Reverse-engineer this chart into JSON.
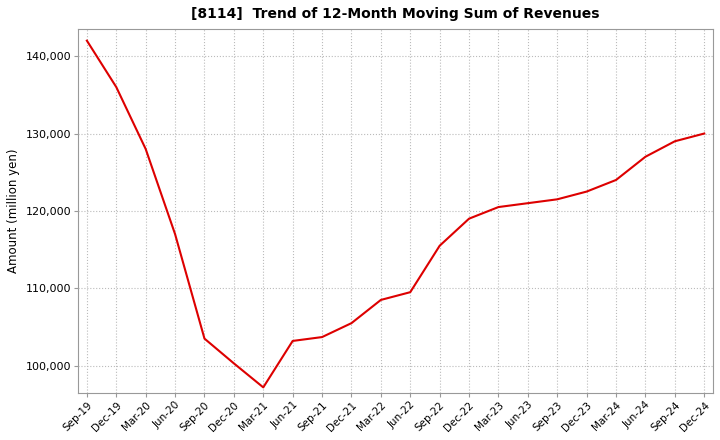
{
  "title": "[8114]  Trend of 12-Month Moving Sum of Revenues",
  "ylabel": "Amount (million yen)",
  "line_color": "#dd0000",
  "background_color": "#ffffff",
  "plot_bg_color": "#ffffff",
  "grid_color": "#bbbbbb",
  "ylim": [
    96500,
    143500
  ],
  "yticks": [
    100000,
    110000,
    120000,
    130000,
    140000
  ],
  "x_labels": [
    "Sep-19",
    "Dec-19",
    "Mar-20",
    "Jun-20",
    "Sep-20",
    "Dec-20",
    "Mar-21",
    "Jun-21",
    "Sep-21",
    "Dec-21",
    "Mar-22",
    "Jun-22",
    "Sep-22",
    "Dec-22",
    "Mar-23",
    "Jun-23",
    "Sep-23",
    "Dec-23",
    "Mar-24",
    "Jun-24",
    "Sep-24",
    "Dec-24"
  ],
  "data_points": [
    142000,
    136000,
    128000,
    117000,
    103500,
    100300,
    97200,
    103200,
    103700,
    105500,
    108500,
    109500,
    115500,
    119000,
    120500,
    121000,
    121500,
    122500,
    124000,
    127000,
    129000,
    130000
  ]
}
